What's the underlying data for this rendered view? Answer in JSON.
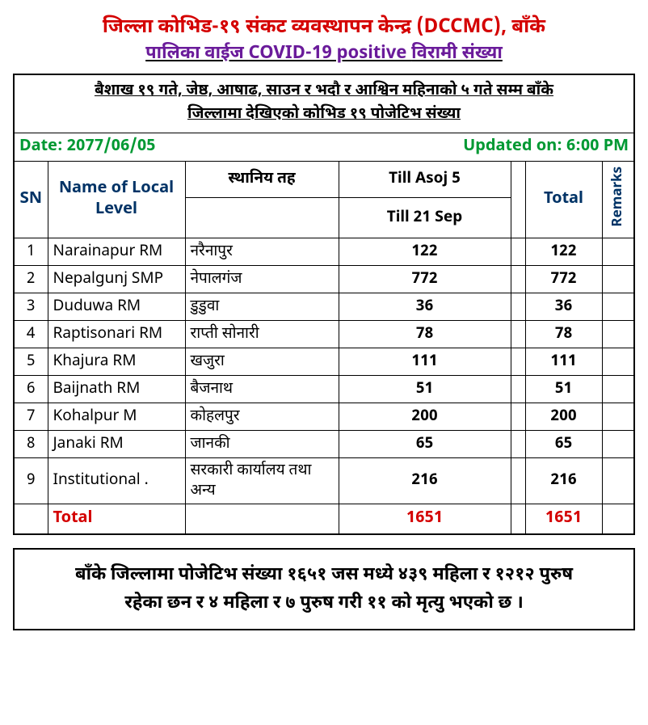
{
  "colors": {
    "red": "#d40000",
    "purple": "#6a1b9a",
    "green": "#009933",
    "navy": "#003366",
    "black": "#000000"
  },
  "header": {
    "line1": "जिल्ला कोभिड-१९ संकट व्यवस्थापन केन्द्र (DCCMC), बाँके",
    "line2_a": "पालिका वाईज  ",
    "line2_b": "COVID-19 positive ",
    "line2_c": "विरामी संख्या"
  },
  "period": {
    "line1": "बैशाख १९ गते, जेष्ठ, आषाढ, साउन र भदौ र आश्विन महिनाको ५ गते सम्म बाँके ",
    "line2": "जिल्लामा देखिएको कोभिड १९ पोजेटिभ संख्या"
  },
  "meta": {
    "date_label": "Date: 2077/06/05",
    "updated_label": "Updated on: 6:00 PM"
  },
  "columns": {
    "sn": "SN",
    "name": "Name of Local Level",
    "nep": "स्थानिय तह",
    "till1": "Till Asoj 5",
    "till2": "Till 21 Sep",
    "total": "Total",
    "remarks": "Remarks"
  },
  "rows": [
    {
      "sn": "1",
      "name": "Narainapur RM",
      "nep": "नरैनापुर",
      "v1": "122",
      "total": "122"
    },
    {
      "sn": "2",
      "name": "Nepalgunj SMP",
      "nep": "नेपालगंज",
      "v1": "772",
      "total": "772"
    },
    {
      "sn": "3",
      "name": "Duduwa RM",
      "nep": "डुडुवा",
      "v1": "36",
      "total": "36"
    },
    {
      "sn": "4",
      "name": "Raptisonari RM",
      "nep": "राप्ती सोनारी",
      "v1": "78",
      "total": "78"
    },
    {
      "sn": "5",
      "name": "Khajura RM",
      "nep": "खजुरा",
      "v1": "111",
      "total": "111"
    },
    {
      "sn": "6",
      "name": "Baijnath RM",
      "nep": "बैजनाथ",
      "v1": "51",
      "total": "51"
    },
    {
      "sn": "7",
      "name": "Kohalpur M",
      "nep": "कोहलपुर",
      "v1": "200",
      "total": "200"
    },
    {
      "sn": "8",
      "name": "Janaki RM",
      "nep": "जानकी",
      "v1": "65",
      "total": "65"
    },
    {
      "sn": "9",
      "name": "Institutional .",
      "nep": "सरकारी कार्यालय तथा अन्य",
      "v1": "216",
      "total": "216"
    }
  ],
  "totals": {
    "label": "Total",
    "v1": "1651",
    "total": "1651"
  },
  "footer": {
    "line1": "बाँके जिल्लामा पोजेटिभ संख्या १६५१ जस मध्ये ४३९ महिला र १२१२ पुरुष",
    "line2": "रहेका छन र ४ महिला र ७ पुरुष गरी ११ को मृत्यु भएको छ ।"
  }
}
